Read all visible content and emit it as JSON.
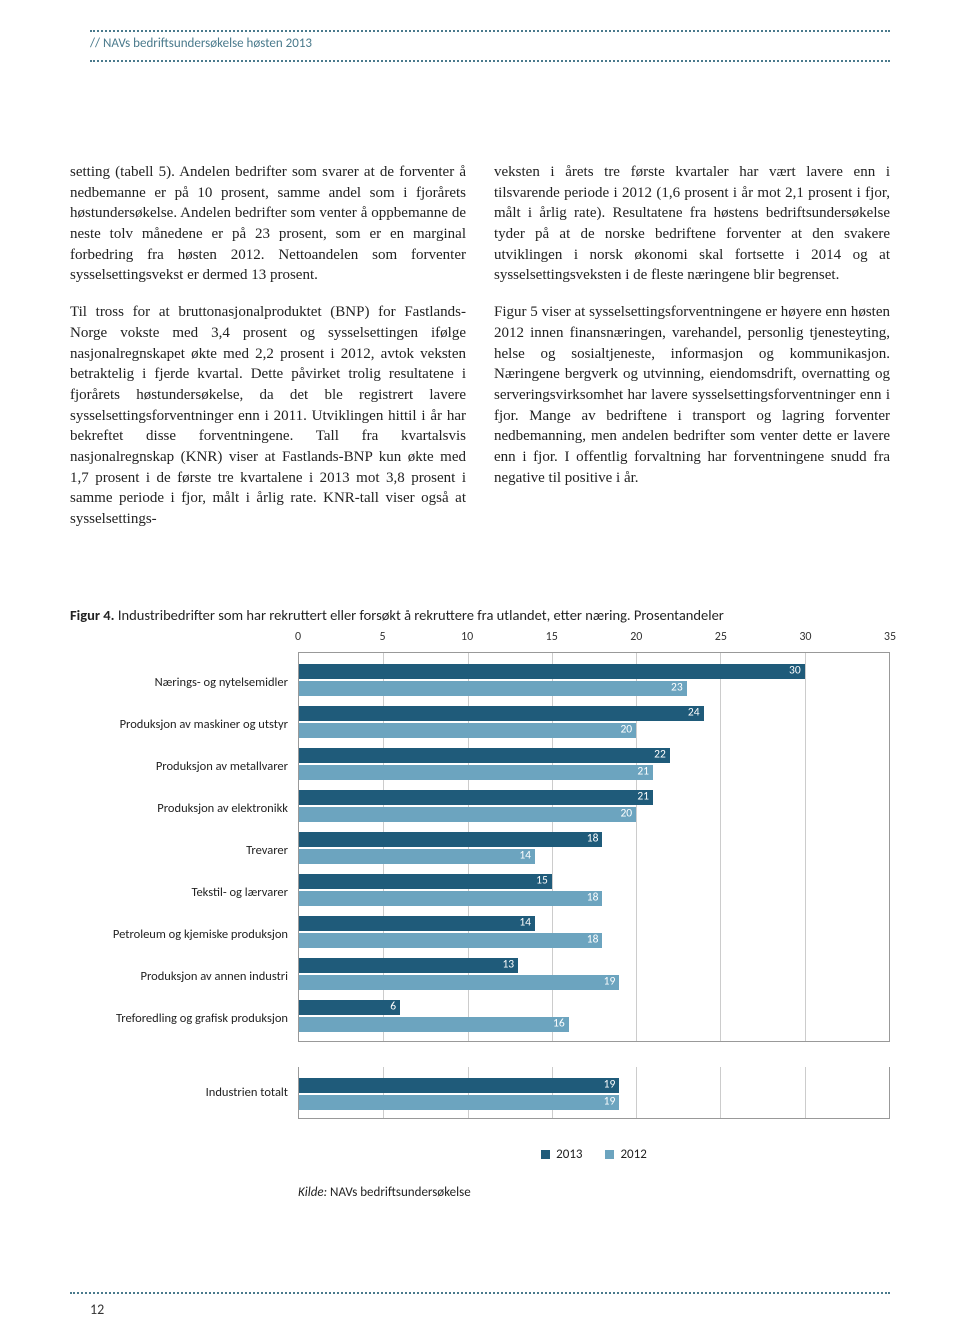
{
  "header": {
    "title": "//  NAVs bedriftsundersøkelse høsten 2013"
  },
  "body": {
    "left": {
      "p1": "setting (tabell 5). Andelen bedrifter som svarer at de forventer å nedbemanne er på 10 prosent, samme andel som i fjorårets høstundersøkelse. Andelen bedrifter som venter å oppbemanne de neste tolv månedene er på 23 prosent, som er en marginal forbedring fra høsten 2012. Nettoandelen som forventer sysselsettingsvekst er dermed 13 prosent.",
      "p2": "Til tross for at bruttonasjonalproduktet (BNP) for Fastlands-Norge vokste med 3,4 prosent og sysselsettingen ifølge nasjonalregnskapet økte med 2,2 prosent i 2012, avtok veksten betraktelig i fjerde kvartal. Dette påvirket trolig resultatene i fjorårets høstundersøkelse, da det ble registrert lavere sysselsettingsforventninger enn i 2011. Utviklingen hittil i år har bekreftet disse forventningene. Tall fra kvartalsvis nasjonalregnskap (KNR) viser at Fastlands-BNP kun økte med 1,7 prosent i de første tre kvartalene i 2013 mot 3,8 prosent i samme periode i fjor, målt i årlig rate. KNR-tall viser også at sysselsettings-"
    },
    "right": {
      "p1": "veksten i årets tre første kvartaler har vært lavere enn i tilsvarende periode i 2012 (1,6 prosent i år mot 2,1 prosent i fjor, målt i årlig rate). Resultatene fra høstens bedriftsundersøkelse tyder på at de norske bedriftene forventer at den svakere utviklingen i norsk økonomi skal fortsette i 2014 og at sysselsettingsveksten i de fleste næringene blir begrenset.",
      "p2": "Figur 5 viser at sysselsettingsforventningene er høyere enn høsten 2012 innen finansnæringen, varehandel, personlig tjenesteyting, helse og sosialtjeneste, informasjon og kommunikasjon. Næringene bergverk og utvinning, eiendomsdrift, overnatting og serveringsvirksomhet har lavere sysselsettingsforventninger enn i fjor. Mange av bedriftene i transport og lagring forventer nedbemanning, men andelen bedrifter som venter dette er lavere enn i fjor. I offentlig forvaltning har forventningene snudd fra negative til positive i år."
    }
  },
  "figure": {
    "label": "Figur 4.",
    "caption": "Industribedrifter som har rekruttert eller forsøkt å rekruttere fra utlandet, etter næring. Prosentandeler",
    "xmax": 35,
    "xtick_step": 5,
    "xticks": [
      0,
      5,
      10,
      15,
      20,
      25,
      30,
      35
    ],
    "categories": [
      {
        "name": "Nærings- og nytelsemidler",
        "v2013": 30,
        "v2012": 23
      },
      {
        "name": "Produksjon av maskiner og utstyr",
        "v2013": 24,
        "v2012": 20
      },
      {
        "name": "Produksjon av metallvarer",
        "v2013": 22,
        "v2012": 21
      },
      {
        "name": "Produksjon av elektronikk",
        "v2013": 21,
        "v2012": 20
      },
      {
        "name": "Trevarer",
        "v2013": 18,
        "v2012": 14
      },
      {
        "name": "Tekstil- og lærvarer",
        "v2013": 15,
        "v2012": 18
      },
      {
        "name": "Petroleum og kjemiske produksjon",
        "v2013": 14,
        "v2012": 18
      },
      {
        "name": "Produksjon av annen industri",
        "v2013": 13,
        "v2012": 19
      },
      {
        "name": "Treforedling og grafisk produksjon",
        "v2013": 6,
        "v2012": 16
      }
    ],
    "total": {
      "name": "Industrien totalt",
      "v2013": 19,
      "v2012": 19
    },
    "colors": {
      "s2013": "#1f5b7a",
      "s2012": "#6ca4bf",
      "grid": "#cccccc",
      "border": "#999999",
      "label_text": "#ffffff"
    },
    "fontsize": {
      "axis": 12,
      "cat": 12.5,
      "barlabel": 11.5
    },
    "legend": {
      "s2013": "2013",
      "s2012": "2012"
    },
    "source_label": "Kilde:",
    "source_text": "NAVs bedriftsundersøkelse"
  },
  "page_number": "12"
}
